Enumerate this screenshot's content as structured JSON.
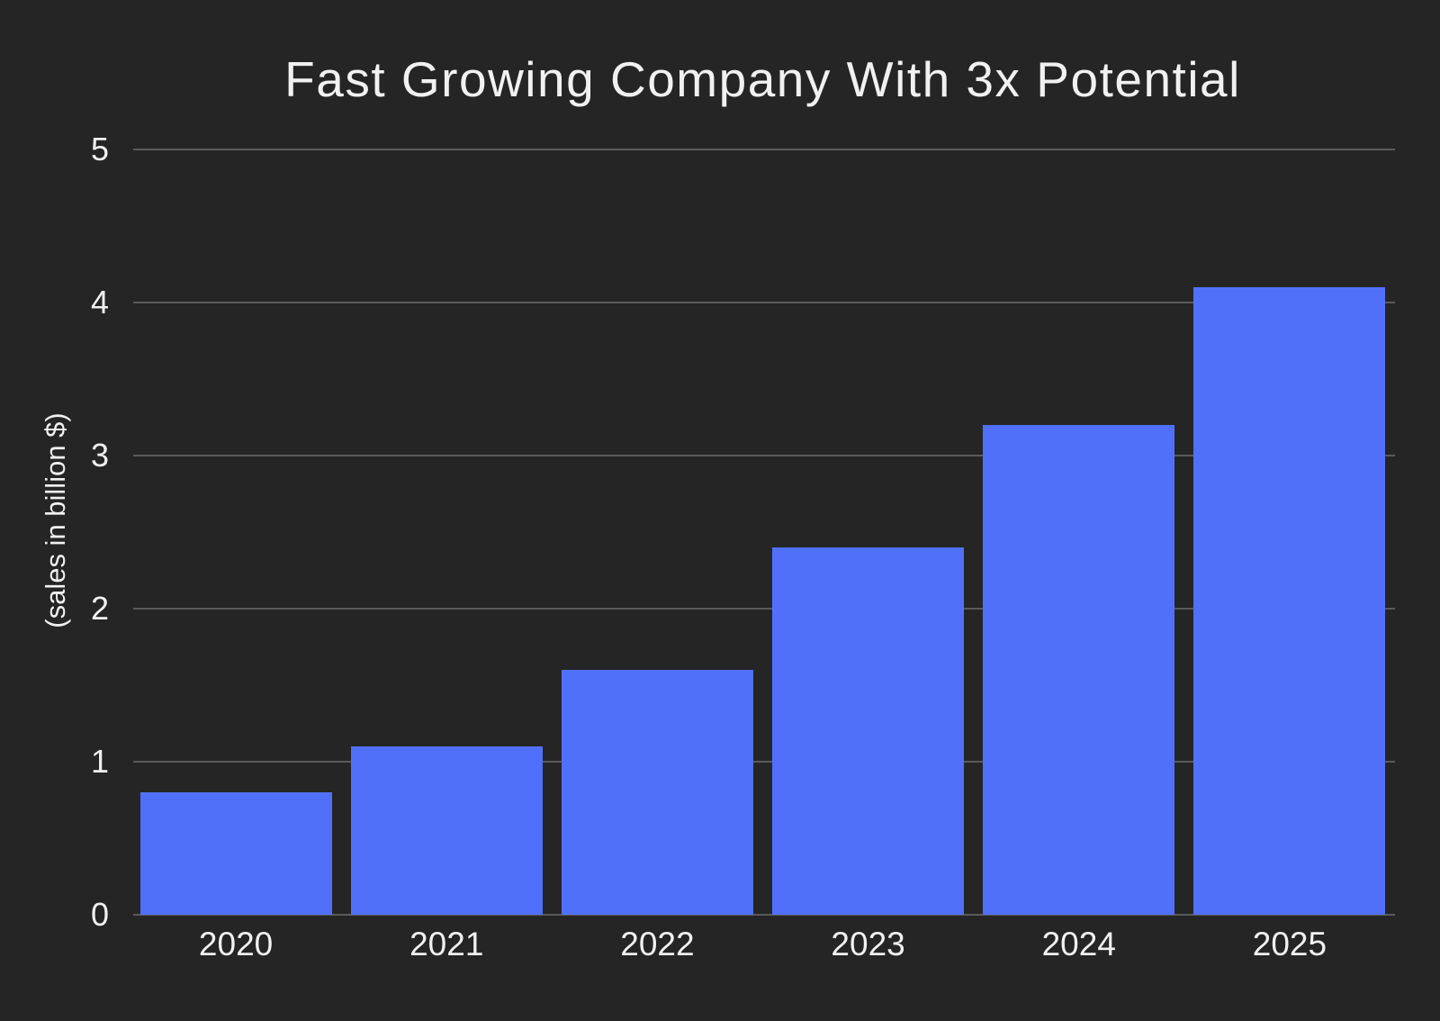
{
  "title": "Fast Growing Company With 3x Potential",
  "colors": {
    "background": "#252525",
    "bar": "#5170FA",
    "grid": "#5A5A5A",
    "text": "#F1F1F1"
  },
  "chart_data": {
    "type": "bar",
    "title": "Fast Growing Company With 3x Potential",
    "categories": [
      "2020",
      "2021",
      "2022",
      "2023",
      "2024",
      "2025"
    ],
    "values": [
      0.8,
      1.1,
      1.6,
      2.4,
      3.2,
      4.1
    ],
    "xlabel": "",
    "ylabel": "(sales in billion $)",
    "ylim": [
      0,
      5
    ],
    "yticks": [
      0,
      1,
      2,
      3,
      4,
      5
    ],
    "grid": true,
    "legend": false,
    "bar_fill_ratio": 0.91
  }
}
